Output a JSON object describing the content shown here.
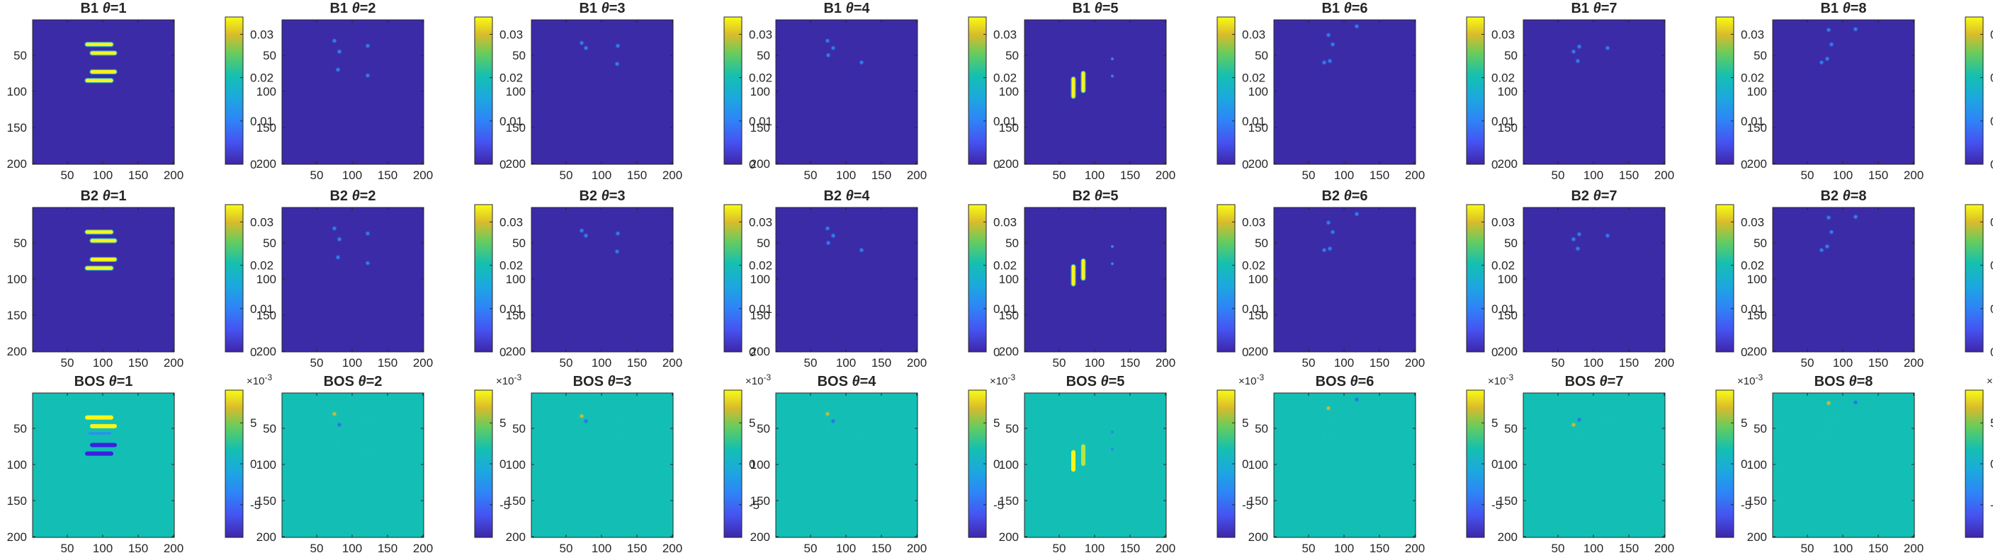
{
  "chart_data": {
    "type": "heatmap",
    "layout": {
      "rows": 3,
      "cols": 8
    },
    "row_labels": [
      "B1",
      "B2",
      "BOS"
    ],
    "theta_symbol": "θ",
    "theta_values": [
      1,
      2,
      3,
      4,
      5,
      6,
      7,
      8
    ],
    "x_ticks": [
      50,
      100,
      150,
      200
    ],
    "y_ticks": [
      50,
      100,
      150,
      200
    ],
    "x_range": [
      1,
      201
    ],
    "y_range": [
      1,
      201
    ],
    "colormap": "parula",
    "colorbars": [
      {
        "row": "B1",
        "ticks": [
          "0",
          "0.01",
          "0.02",
          "0.03"
        ],
        "tick_values": [
          0,
          0.01,
          0.02,
          0.03
        ],
        "range": [
          0,
          0.034
        ],
        "multiplier": ""
      },
      {
        "row": "B2",
        "ticks": [
          "0",
          "0.01",
          "0.02",
          "0.03"
        ],
        "tick_values": [
          0,
          0.01,
          0.02,
          0.03
        ],
        "range": [
          0,
          0.034
        ],
        "multiplier": ""
      },
      {
        "row": "BOS",
        "ticks": [
          "-5",
          "0",
          "5"
        ],
        "tick_values": [
          -5,
          0,
          5
        ],
        "range": [
          -9,
          9
        ],
        "multiplier_base": "×10",
        "multiplier_exp": "-3"
      }
    ],
    "colors": {
      "background_low": "#3c2ba6",
      "background_bos_zero": "#13bfb4",
      "high": "#f8f519",
      "low_bos": "#3b1fe0"
    }
  }
}
